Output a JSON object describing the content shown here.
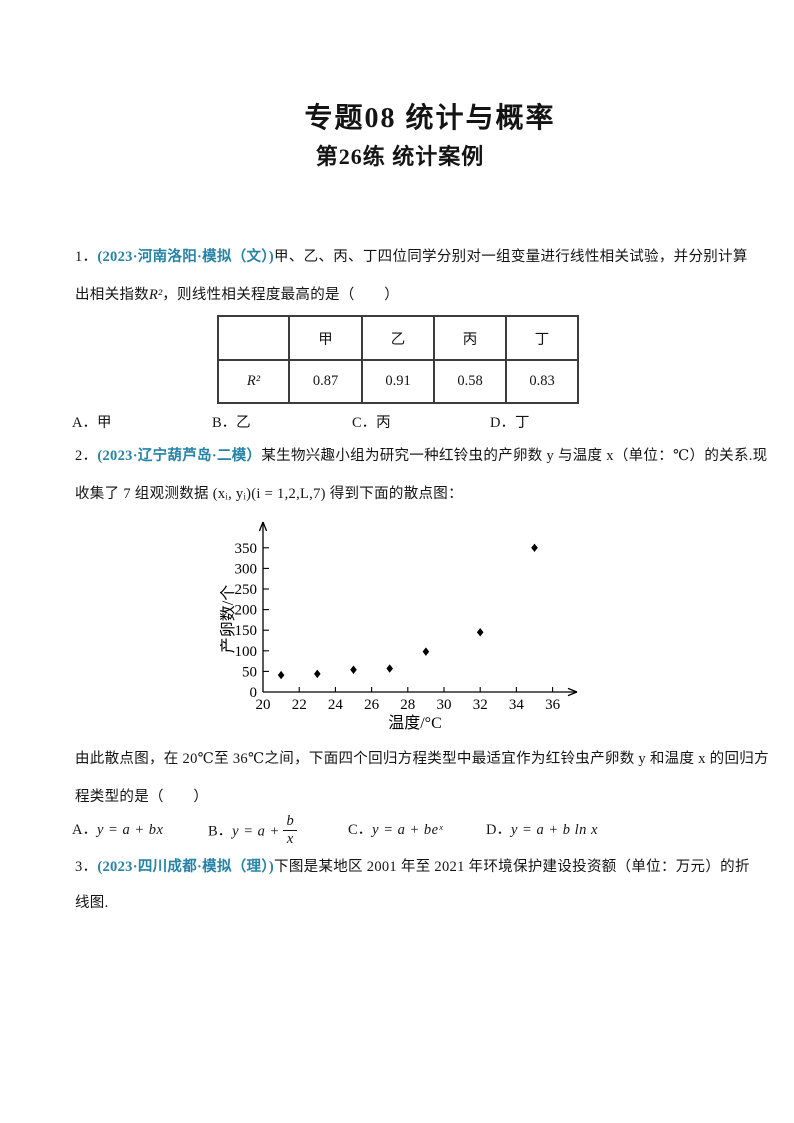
{
  "header": {
    "title": "专题08 统计与概率",
    "subtitle": "第26练 统计案例"
  },
  "q1": {
    "number": "1．",
    "source": "(2023·河南洛阳·模拟（文）)",
    "line1": "甲、乙、丙、丁四位同学分别对一组变量进行线性相关试验，并分别计算",
    "line2_pre": "出相关指数",
    "line2_math": "R²",
    "line2_post": "，则线性相关程度最高的是（　　）",
    "table": {
      "headers": [
        "",
        "甲",
        "乙",
        "丙",
        "丁"
      ],
      "row_label": "R²",
      "values": [
        "0.87",
        "0.91",
        "0.58",
        "0.83"
      ]
    },
    "options": [
      {
        "label": "A．",
        "text": "甲"
      },
      {
        "label": "B．",
        "text": "乙"
      },
      {
        "label": "C．",
        "text": "丙"
      },
      {
        "label": "D．",
        "text": "丁"
      }
    ]
  },
  "q2": {
    "number": "2．",
    "source": "(2023·辽宁葫芦岛·二模）",
    "line1": "某生物兴趣小组为研究一种红铃虫的产卵数 y 与温度 x（单位：℃）的关系.现",
    "line2": "收集了 7 组观测数据 (xᵢ, yᵢ)(i = 1,2,L,7) 得到下面的散点图：",
    "after_line1": "由此散点图，在 20℃至 36℃之间，下面四个回归方程类型中最适宜作为红铃虫产卵数 y 和温度 x 的回归方",
    "after_line2": "程类型的是（　　）",
    "options": [
      {
        "label": "A．",
        "formula": "y = a + bx"
      },
      {
        "label": "B．",
        "formula_prefix": "y = a +",
        "frac_num": "b",
        "frac_den": "x"
      },
      {
        "label": "C．",
        "formula": "y = a + beˣ"
      },
      {
        "label": "D．",
        "formula": "y = a + b ln x"
      }
    ]
  },
  "q3": {
    "number": "3．",
    "source": "(2023·四川成都·模拟（理）)",
    "line1": "下图是某地区 2001 年至 2021 年环境保护建设投资额（单位：万元）的折",
    "line2": "线图."
  },
  "chart_data": {
    "type": "scatter",
    "title": "",
    "xlabel": "温度/°C",
    "ylabel": "产卵数/个",
    "x": [
      21,
      23,
      25,
      27,
      29,
      32,
      35
    ],
    "y": [
      41,
      44,
      54,
      57,
      98,
      145,
      350
    ],
    "xticks": [
      20,
      22,
      24,
      26,
      28,
      30,
      32,
      34,
      36
    ],
    "yticks": [
      0,
      50,
      100,
      150,
      200,
      250,
      300,
      350
    ],
    "xlim": [
      20,
      37.5
    ],
    "ylim": [
      0,
      400
    ],
    "grid": false,
    "legend": false,
    "marker": "diamond",
    "marker_color": "#000000"
  }
}
